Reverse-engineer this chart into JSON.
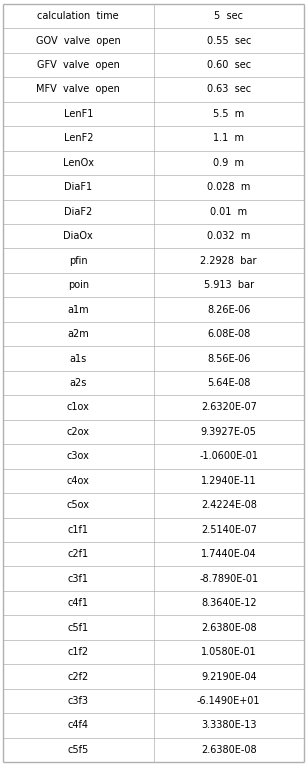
{
  "rows": [
    [
      "calculation  time",
      "5  sec"
    ],
    [
      "GOV  valve  open",
      "0.55  sec"
    ],
    [
      "GFV  valve  open",
      "0.60  sec"
    ],
    [
      "MFV  valve  open",
      "0.63  sec"
    ],
    [
      "LenF1",
      "5.5  m"
    ],
    [
      "LenF2",
      "1.1  m"
    ],
    [
      "LenOx",
      "0.9  m"
    ],
    [
      "DiaF1",
      "0.028  m"
    ],
    [
      "DiaF2",
      "0.01  m"
    ],
    [
      "DiaOx",
      "0.032  m"
    ],
    [
      "pfin",
      "2.2928  bar"
    ],
    [
      "poin",
      "5.913  bar"
    ],
    [
      "a1m",
      "8.26E-06"
    ],
    [
      "a2m",
      "6.08E-08"
    ],
    [
      "a1s",
      "8.56E-06"
    ],
    [
      "a2s",
      "5.64E-08"
    ],
    [
      "c1ox",
      "2.6320E-07"
    ],
    [
      "c2ox",
      "9.3927E-05"
    ],
    [
      "c3ox",
      "-1.0600E-01"
    ],
    [
      "c4ox",
      "1.2940E-11"
    ],
    [
      "c5ox",
      "2.4224E-08"
    ],
    [
      "c1f1",
      "2.5140E-07"
    ],
    [
      "c2f1",
      "1.7440E-04"
    ],
    [
      "c3f1",
      "-8.7890E-01"
    ],
    [
      "c4f1",
      "8.3640E-12"
    ],
    [
      "c5f1",
      "2.6380E-08"
    ],
    [
      "c1f2",
      "1.0580E-01"
    ],
    [
      "c2f2",
      "9.2190E-04"
    ],
    [
      "c3f3",
      "-6.1490E+01"
    ],
    [
      "c4f4",
      "3.3380E-13"
    ],
    [
      "c5f5",
      "2.6380E-08"
    ]
  ],
  "bg_color": "#ffffff",
  "text_color": "#000000",
  "line_color": "#b0b0b0",
  "font_size": 7.0,
  "fig_width": 3.07,
  "fig_height": 7.66,
  "dpi": 100
}
